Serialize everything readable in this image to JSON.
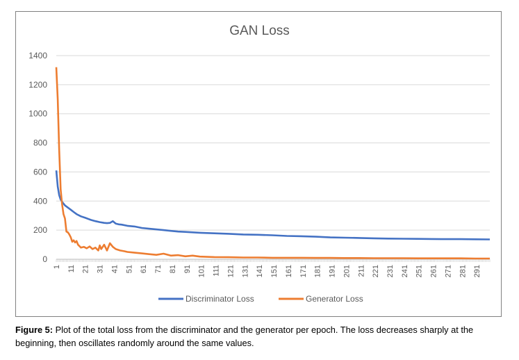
{
  "chart_data": {
    "type": "line",
    "title": "GAN Loss",
    "xlabel": "",
    "ylabel": "",
    "ylim": [
      0,
      1400
    ],
    "yticks": [
      0,
      200,
      400,
      600,
      800,
      1000,
      1200,
      1400
    ],
    "xlim": [
      1,
      300
    ],
    "xticks": [
      1,
      11,
      21,
      31,
      41,
      51,
      61,
      71,
      81,
      91,
      101,
      111,
      121,
      131,
      141,
      151,
      161,
      171,
      181,
      191,
      201,
      211,
      221,
      231,
      241,
      251,
      261,
      271,
      281,
      291
    ],
    "grid": true,
    "legend": "bottom",
    "series": [
      {
        "name": "Discriminator Loss",
        "color": "#4472C4",
        "points": [
          [
            1,
            610
          ],
          [
            2,
            500
          ],
          [
            3,
            440
          ],
          [
            4,
            410
          ],
          [
            5,
            395
          ],
          [
            7,
            370
          ],
          [
            9,
            355
          ],
          [
            11,
            340
          ],
          [
            13,
            325
          ],
          [
            15,
            310
          ],
          [
            18,
            295
          ],
          [
            21,
            285
          ],
          [
            25,
            270
          ],
          [
            28,
            262
          ],
          [
            31,
            255
          ],
          [
            34,
            250
          ],
          [
            36,
            248
          ],
          [
            38,
            250
          ],
          [
            40,
            262
          ],
          [
            42,
            245
          ],
          [
            44,
            240
          ],
          [
            46,
            238
          ],
          [
            50,
            230
          ],
          [
            55,
            225
          ],
          [
            60,
            215
          ],
          [
            65,
            210
          ],
          [
            70,
            205
          ],
          [
            75,
            200
          ],
          [
            80,
            195
          ],
          [
            85,
            190
          ],
          [
            90,
            188
          ],
          [
            95,
            185
          ],
          [
            100,
            182
          ],
          [
            110,
            178
          ],
          [
            120,
            175
          ],
          [
            130,
            170
          ],
          [
            140,
            168
          ],
          [
            150,
            165
          ],
          [
            160,
            160
          ],
          [
            170,
            158
          ],
          [
            180,
            155
          ],
          [
            190,
            150
          ],
          [
            200,
            148
          ],
          [
            210,
            146
          ],
          [
            220,
            144
          ],
          [
            230,
            142
          ],
          [
            240,
            141
          ],
          [
            250,
            140
          ],
          [
            260,
            139
          ],
          [
            270,
            138
          ],
          [
            280,
            138
          ],
          [
            290,
            137
          ],
          [
            300,
            136
          ]
        ]
      },
      {
        "name": "Generator Loss",
        "color": "#ED7D31",
        "points": [
          [
            1,
            1320
          ],
          [
            2,
            1100
          ],
          [
            3,
            750
          ],
          [
            4,
            480
          ],
          [
            5,
            380
          ],
          [
            6,
            310
          ],
          [
            7,
            280
          ],
          [
            8,
            190
          ],
          [
            9,
            185
          ],
          [
            10,
            170
          ],
          [
            11,
            150
          ],
          [
            12,
            120
          ],
          [
            13,
            130
          ],
          [
            14,
            115
          ],
          [
            15,
            125
          ],
          [
            16,
            100
          ],
          [
            17,
            90
          ],
          [
            18,
            80
          ],
          [
            20,
            85
          ],
          [
            22,
            75
          ],
          [
            24,
            88
          ],
          [
            26,
            70
          ],
          [
            28,
            80
          ],
          [
            30,
            60
          ],
          [
            31,
            95
          ],
          [
            32,
            70
          ],
          [
            34,
            100
          ],
          [
            36,
            60
          ],
          [
            38,
            110
          ],
          [
            40,
            85
          ],
          [
            42,
            70
          ],
          [
            45,
            60
          ],
          [
            48,
            55
          ],
          [
            50,
            50
          ],
          [
            55,
            45
          ],
          [
            60,
            40
          ],
          [
            65,
            35
          ],
          [
            70,
            30
          ],
          [
            75,
            38
          ],
          [
            80,
            25
          ],
          [
            85,
            28
          ],
          [
            90,
            20
          ],
          [
            95,
            25
          ],
          [
            100,
            18
          ],
          [
            110,
            15
          ],
          [
            120,
            14
          ],
          [
            130,
            12
          ],
          [
            140,
            12
          ],
          [
            150,
            10
          ],
          [
            160,
            10
          ],
          [
            170,
            10
          ],
          [
            180,
            9
          ],
          [
            190,
            9
          ],
          [
            200,
            8
          ],
          [
            210,
            8
          ],
          [
            220,
            7
          ],
          [
            230,
            7
          ],
          [
            240,
            7
          ],
          [
            250,
            6
          ],
          [
            260,
            6
          ],
          [
            270,
            6
          ],
          [
            280,
            6
          ],
          [
            290,
            5
          ],
          [
            300,
            5
          ]
        ]
      }
    ]
  },
  "caption": {
    "label": "Figure 5:",
    "text": " Plot of the total loss from the discriminator and the generator per epoch. The loss decreases sharply at the beginning, then oscillates randomly around the same values."
  }
}
